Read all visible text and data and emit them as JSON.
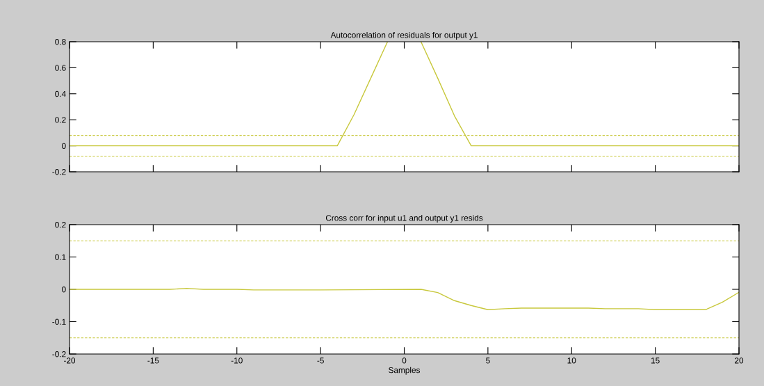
{
  "chart_data": [
    {
      "type": "line",
      "title": "Autocorrelation of residuals for output y1",
      "tick_labels": "y",
      "xlim": [
        -20,
        20
      ],
      "xticks": [
        -20,
        -15,
        -10,
        -5,
        0,
        5,
        10,
        15,
        20
      ],
      "ylim": [
        -0.2,
        0.8
      ],
      "yticks": [
        -0.2,
        0,
        0.2,
        0.4,
        0.6,
        0.8
      ],
      "grid": false,
      "series": [
        {
          "color": "#c8c83c",
          "x": [
            -20,
            -4,
            -3,
            -2,
            -1,
            0,
            1,
            2,
            3,
            4,
            20
          ],
          "values": [
            0,
            0,
            0.24,
            0.52,
            0.8,
            null,
            0.8,
            0.52,
            0.23,
            0,
            0
          ]
        }
      ],
      "ref_lines": [
        {
          "axis": "y",
          "value": 0.08,
          "color": "#c8c83c",
          "line_style": "dashed"
        },
        {
          "axis": "y",
          "value": -0.08,
          "color": "#c8c83c",
          "line_style": "dashed"
        }
      ]
    },
    {
      "type": "line",
      "title": "Cross corr for input u1 and output y1 resids",
      "xlabel": "Samples",
      "xlim": [
        -20,
        20
      ],
      "xticks": [
        -20,
        -15,
        -10,
        -5,
        0,
        5,
        10,
        15,
        20
      ],
      "ylim": [
        -0.2,
        0.2
      ],
      "yticks": [
        -0.2,
        -0.1,
        0,
        0.1,
        0.2
      ],
      "grid": false,
      "series": [
        {
          "color": "#c8c83c",
          "x": [
            -20,
            -14,
            -13,
            -12,
            -10,
            -9,
            -5,
            1,
            2,
            3,
            4,
            5,
            6,
            7,
            11,
            12,
            14,
            15,
            18,
            19,
            20
          ],
          "values": [
            0,
            0,
            0.003,
            0,
            0,
            -0.002,
            -0.002,
            0,
            -0.01,
            -0.035,
            -0.05,
            -0.063,
            -0.06,
            -0.058,
            -0.058,
            -0.06,
            -0.06,
            -0.063,
            -0.063,
            -0.04,
            -0.009
          ]
        }
      ],
      "ref_lines": [
        {
          "axis": "y",
          "value": 0.15,
          "color": "#c8c83c",
          "line_style": "dashed"
        },
        {
          "axis": "y",
          "value": -0.15,
          "color": "#c8c83c",
          "line_style": "dashed"
        }
      ]
    }
  ]
}
